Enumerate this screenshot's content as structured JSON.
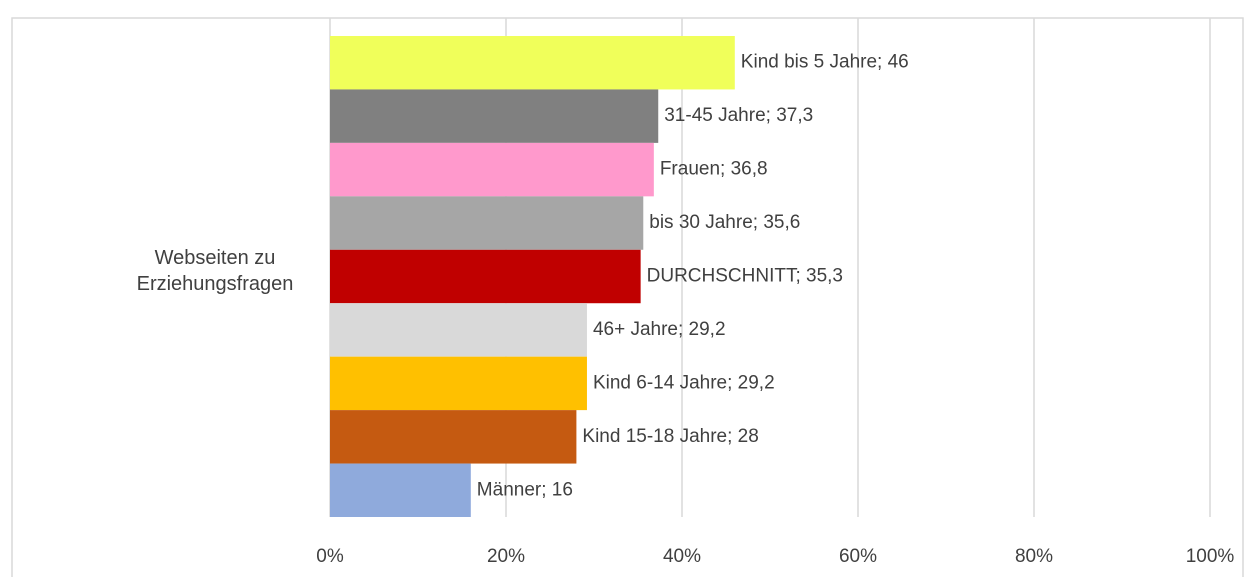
{
  "chart_data": {
    "type": "bar",
    "orientation": "horizontal",
    "categories": [
      "Webseiten zu Erziehungsfragen"
    ],
    "series": [
      {
        "name": "Kind bis 5 Jahre",
        "color": "#f0ff5a",
        "values": [
          46
        ],
        "value_labels": [
          "Kind bis 5 Jahre; 46"
        ]
      },
      {
        "name": "31-45 Jahre",
        "color": "#808080",
        "values": [
          37.3
        ],
        "value_labels": [
          "31-45 Jahre; 37,3"
        ]
      },
      {
        "name": "Frauen",
        "color": "#ff99cc",
        "values": [
          36.8
        ],
        "value_labels": [
          "Frauen; 36,8"
        ]
      },
      {
        "name": "bis 30 Jahre",
        "color": "#a6a6a6",
        "values": [
          35.6
        ],
        "value_labels": [
          "bis 30 Jahre; 35,6"
        ]
      },
      {
        "name": "DURCHSCHNITT",
        "color": "#c00000",
        "values": [
          35.3
        ],
        "value_labels": [
          "DURCHSCHNITT; 35,3"
        ]
      },
      {
        "name": "46+ Jahre",
        "color": "#d9d9d9",
        "values": [
          29.2
        ],
        "value_labels": [
          "46+ Jahre; 29,2"
        ]
      },
      {
        "name": "Kind 6-14 Jahre",
        "color": "#ffc000",
        "values": [
          29.2
        ],
        "value_labels": [
          "Kind 6-14 Jahre; 29,2"
        ]
      },
      {
        "name": "Kind 15-18 Jahre",
        "color": "#c55a11",
        "values": [
          28
        ],
        "value_labels": [
          "Kind 15-18 Jahre; 28"
        ]
      },
      {
        "name": "Männer",
        "color": "#8faadc",
        "values": [
          16
        ],
        "value_labels": [
          "Männer; 16"
        ]
      }
    ],
    "xlim": [
      0,
      100
    ],
    "xticks": [
      {
        "value": 0,
        "label": "0%"
      },
      {
        "value": 20,
        "label": "20%"
      },
      {
        "value": 40,
        "label": "40%"
      },
      {
        "value": 60,
        "label": "60%"
      },
      {
        "value": 80,
        "label": "80%"
      },
      {
        "value": 100,
        "label": "100%"
      }
    ],
    "grid": true
  }
}
